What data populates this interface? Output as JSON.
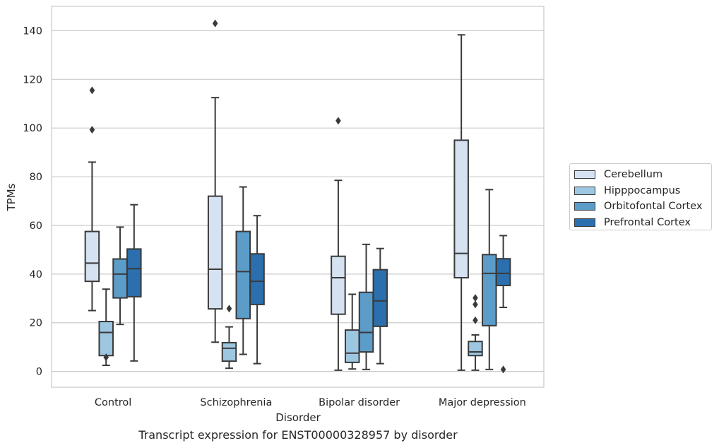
{
  "caption": "Transcript expression for ENST00000328957 by disorder",
  "chart_data": {
    "type": "box",
    "title": "",
    "xlabel": "Disorder",
    "ylabel": "TPMs",
    "ylim": [
      -6.5,
      150
    ],
    "yticks": [
      0,
      20,
      40,
      60,
      80,
      100,
      120,
      140
    ],
    "grid": "horizontal",
    "legend_position": "right",
    "categories": [
      "Control",
      "Schizophrenia",
      "Bipolar disorder",
      "Major depression"
    ],
    "series": [
      {
        "name": "Cerebellum",
        "color": "#d4e2f1",
        "boxes": [
          {
            "whisker_low": 25,
            "q1": 37,
            "median": 44.5,
            "q3": 57.5,
            "whisker_high": 86,
            "outliers": [
              99.3,
              115.5
            ]
          },
          {
            "whisker_low": 12,
            "q1": 25.7,
            "median": 42,
            "q3": 72,
            "whisker_high": 112.5,
            "outliers": [
              143
            ]
          },
          {
            "whisker_low": 0.5,
            "q1": 23.5,
            "median": 38.5,
            "q3": 47.3,
            "whisker_high": 78.5,
            "outliers": [
              103
            ]
          },
          {
            "whisker_low": 0.5,
            "q1": 38.5,
            "median": 48.5,
            "q3": 95,
            "whisker_high": 138.3,
            "outliers": []
          }
        ]
      },
      {
        "name": "Hipppocampus",
        "color": "#9dc6e0",
        "boxes": [
          {
            "whisker_low": 2.5,
            "q1": 6.5,
            "median": 16,
            "q3": 20.5,
            "whisker_high": 33.8,
            "outliers": [
              5.8
            ]
          },
          {
            "whisker_low": 1.3,
            "q1": 4.2,
            "median": 9.5,
            "q3": 11.8,
            "whisker_high": 18.3,
            "outliers": [
              25.8
            ]
          },
          {
            "whisker_low": 1,
            "q1": 3.7,
            "median": 7.5,
            "q3": 17,
            "whisker_high": 31.7,
            "outliers": []
          },
          {
            "whisker_low": 0.5,
            "q1": 6.5,
            "median": 8,
            "q3": 12.3,
            "whisker_high": 15,
            "outliers": [
              21,
              27.5,
              30.2
            ]
          }
        ]
      },
      {
        "name": "Orbitofontal Cortex",
        "color": "#5b9cc9",
        "boxes": [
          {
            "whisker_low": 19.3,
            "q1": 30.2,
            "median": 40,
            "q3": 46.2,
            "whisker_high": 59.3,
            "outliers": []
          },
          {
            "whisker_low": 7,
            "q1": 21.7,
            "median": 41,
            "q3": 57.5,
            "whisker_high": 75.8,
            "outliers": []
          },
          {
            "whisker_low": 0.8,
            "q1": 8,
            "median": 16,
            "q3": 32.5,
            "whisker_high": 52.2,
            "outliers": []
          },
          {
            "whisker_low": 0.8,
            "q1": 18.8,
            "median": 40.3,
            "q3": 48,
            "whisker_high": 74.7,
            "outliers": []
          }
        ]
      },
      {
        "name": "Prefrontal Cortex",
        "color": "#2b6fae",
        "boxes": [
          {
            "whisker_low": 4.3,
            "q1": 30.7,
            "median": 42.2,
            "q3": 50.3,
            "whisker_high": 68.5,
            "outliers": []
          },
          {
            "whisker_low": 3.2,
            "q1": 27.5,
            "median": 37,
            "q3": 48.3,
            "whisker_high": 64,
            "outliers": []
          },
          {
            "whisker_low": 3.2,
            "q1": 18.5,
            "median": 29,
            "q3": 41.8,
            "whisker_high": 50.5,
            "outliers": []
          },
          {
            "whisker_low": 26.3,
            "q1": 35.3,
            "median": 40.3,
            "q3": 46.3,
            "whisker_high": 55.8,
            "outliers": [
              0.8
            ]
          }
        ]
      }
    ]
  }
}
